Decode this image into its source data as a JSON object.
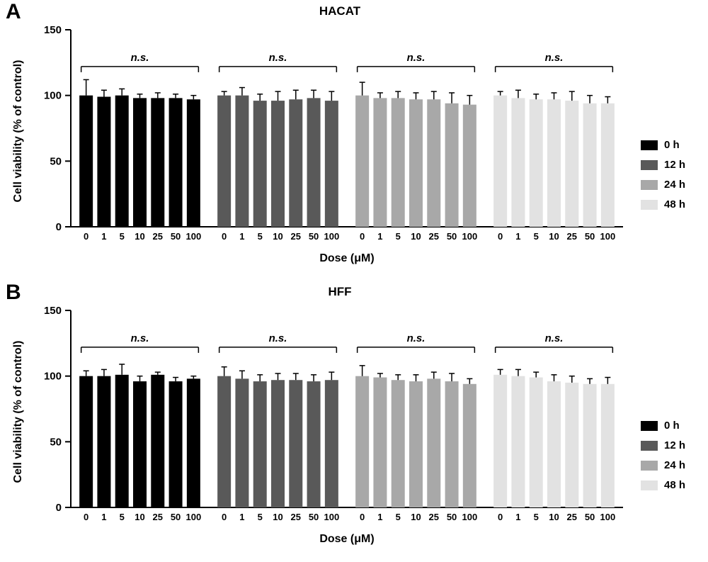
{
  "page": {
    "background": "#ffffff"
  },
  "panels": [
    {
      "letter": "A",
      "title": "HACAT",
      "xlabel": "Dose (μM)",
      "ylabel": "Cell viability (% of control)"
    },
    {
      "letter": "B",
      "title": "HFF",
      "xlabel": "Dose (μM)",
      "ylabel": "Cell viability (% of control)"
    }
  ],
  "chart_data": [
    {
      "type": "bar",
      "title": "HACAT",
      "xlabel": "Dose (μM)",
      "ylabel": "Cell viability (% of control)",
      "ylim": [
        0,
        150
      ],
      "yticks": [
        0,
        50,
        100,
        150
      ],
      "categories": [
        "0",
        "1",
        "5",
        "10",
        "25",
        "50",
        "100"
      ],
      "grid": false,
      "legend_position": "right",
      "annotations": [
        "n.s.",
        "n.s.",
        "n.s.",
        "n.s."
      ],
      "annotation_y": 122,
      "series": [
        {
          "name": "0 h",
          "color": "#000000",
          "values": [
            100,
            99,
            100,
            98,
            98,
            98,
            97
          ],
          "errors": [
            12,
            5,
            5,
            3,
            4,
            3,
            3
          ]
        },
        {
          "name": "12 h",
          "color": "#595959",
          "values": [
            100,
            100,
            96,
            96,
            97,
            98,
            96
          ],
          "errors": [
            3,
            6,
            5,
            7,
            7,
            6,
            7
          ]
        },
        {
          "name": "24 h",
          "color": "#a8a8a8",
          "values": [
            100,
            98,
            98,
            97,
            97,
            94,
            93
          ],
          "errors": [
            10,
            4,
            5,
            5,
            6,
            8,
            7
          ]
        },
        {
          "name": "48 h",
          "color": "#e2e2e2",
          "values": [
            100,
            98,
            97,
            97,
            96,
            94,
            94
          ],
          "errors": [
            3,
            6,
            4,
            5,
            7,
            6,
            5
          ]
        }
      ]
    },
    {
      "type": "bar",
      "title": "HFF",
      "xlabel": "Dose (μM)",
      "ylabel": "Cell viability (% of control)",
      "ylim": [
        0,
        150
      ],
      "yticks": [
        0,
        50,
        100,
        150
      ],
      "categories": [
        "0",
        "1",
        "5",
        "10",
        "25",
        "50",
        "100"
      ],
      "grid": false,
      "legend_position": "right",
      "annotations": [
        "n.s.",
        "n.s.",
        "n.s.",
        "n.s."
      ],
      "annotation_y": 122,
      "series": [
        {
          "name": "0 h",
          "color": "#000000",
          "values": [
            100,
            100,
            101,
            96,
            101,
            96,
            98
          ],
          "errors": [
            4,
            5,
            8,
            4,
            2,
            3,
            2
          ]
        },
        {
          "name": "12 h",
          "color": "#595959",
          "values": [
            100,
            98,
            96,
            97,
            97,
            96,
            97
          ],
          "errors": [
            7,
            6,
            5,
            5,
            5,
            5,
            6
          ]
        },
        {
          "name": "24 h",
          "color": "#a8a8a8",
          "values": [
            100,
            99,
            97,
            96,
            98,
            96,
            94
          ],
          "errors": [
            8,
            3,
            4,
            5,
            5,
            6,
            4
          ]
        },
        {
          "name": "48 h",
          "color": "#e2e2e2",
          "values": [
            101,
            100,
            99,
            96,
            95,
            94,
            94
          ],
          "errors": [
            4,
            5,
            4,
            5,
            5,
            4,
            5
          ]
        }
      ]
    }
  ]
}
